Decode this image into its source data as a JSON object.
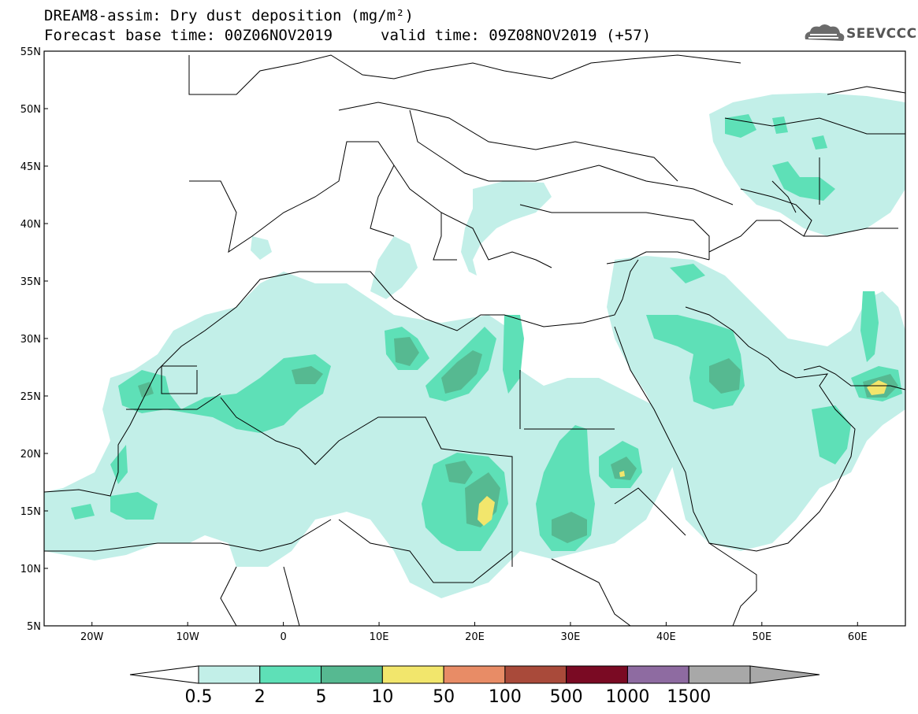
{
  "header": {
    "title_line1": "DREAM8-assim: Dry dust deposition (mg/m²)",
    "title_line2": "Forecast base time: 00Z06NOV2019",
    "valid_text": "valid time: 09Z08NOV2019 (+57)",
    "logo_text": "SEEVCCC"
  },
  "map": {
    "lon_range": [
      -25,
      65
    ],
    "lat_range": [
      5,
      55
    ],
    "lat_labels": [
      "55N",
      "50N",
      "45N",
      "40N",
      "35N",
      "30N",
      "25N",
      "20N",
      "15N",
      "10N",
      "5N"
    ],
    "lon_labels": [
      "20W",
      "10W",
      "0",
      "10E",
      "20E",
      "30E",
      "40E",
      "50E",
      "60E"
    ]
  },
  "legend": {
    "labels": [
      "0.5",
      "2",
      "5",
      "10",
      "50",
      "100",
      "500",
      "1000",
      "1500"
    ],
    "colors": [
      "#c2efe8",
      "#5ee0b7",
      "#56b991",
      "#f2e66c",
      "#e88c66",
      "#a94a3a",
      "#7a0a23",
      "#8e6ba1",
      "#a8a8a8"
    ]
  },
  "colors": {
    "level1": "#c2efe8",
    "level2": "#5ee0b7",
    "level3": "#56b991",
    "level4": "#f2e66c"
  }
}
